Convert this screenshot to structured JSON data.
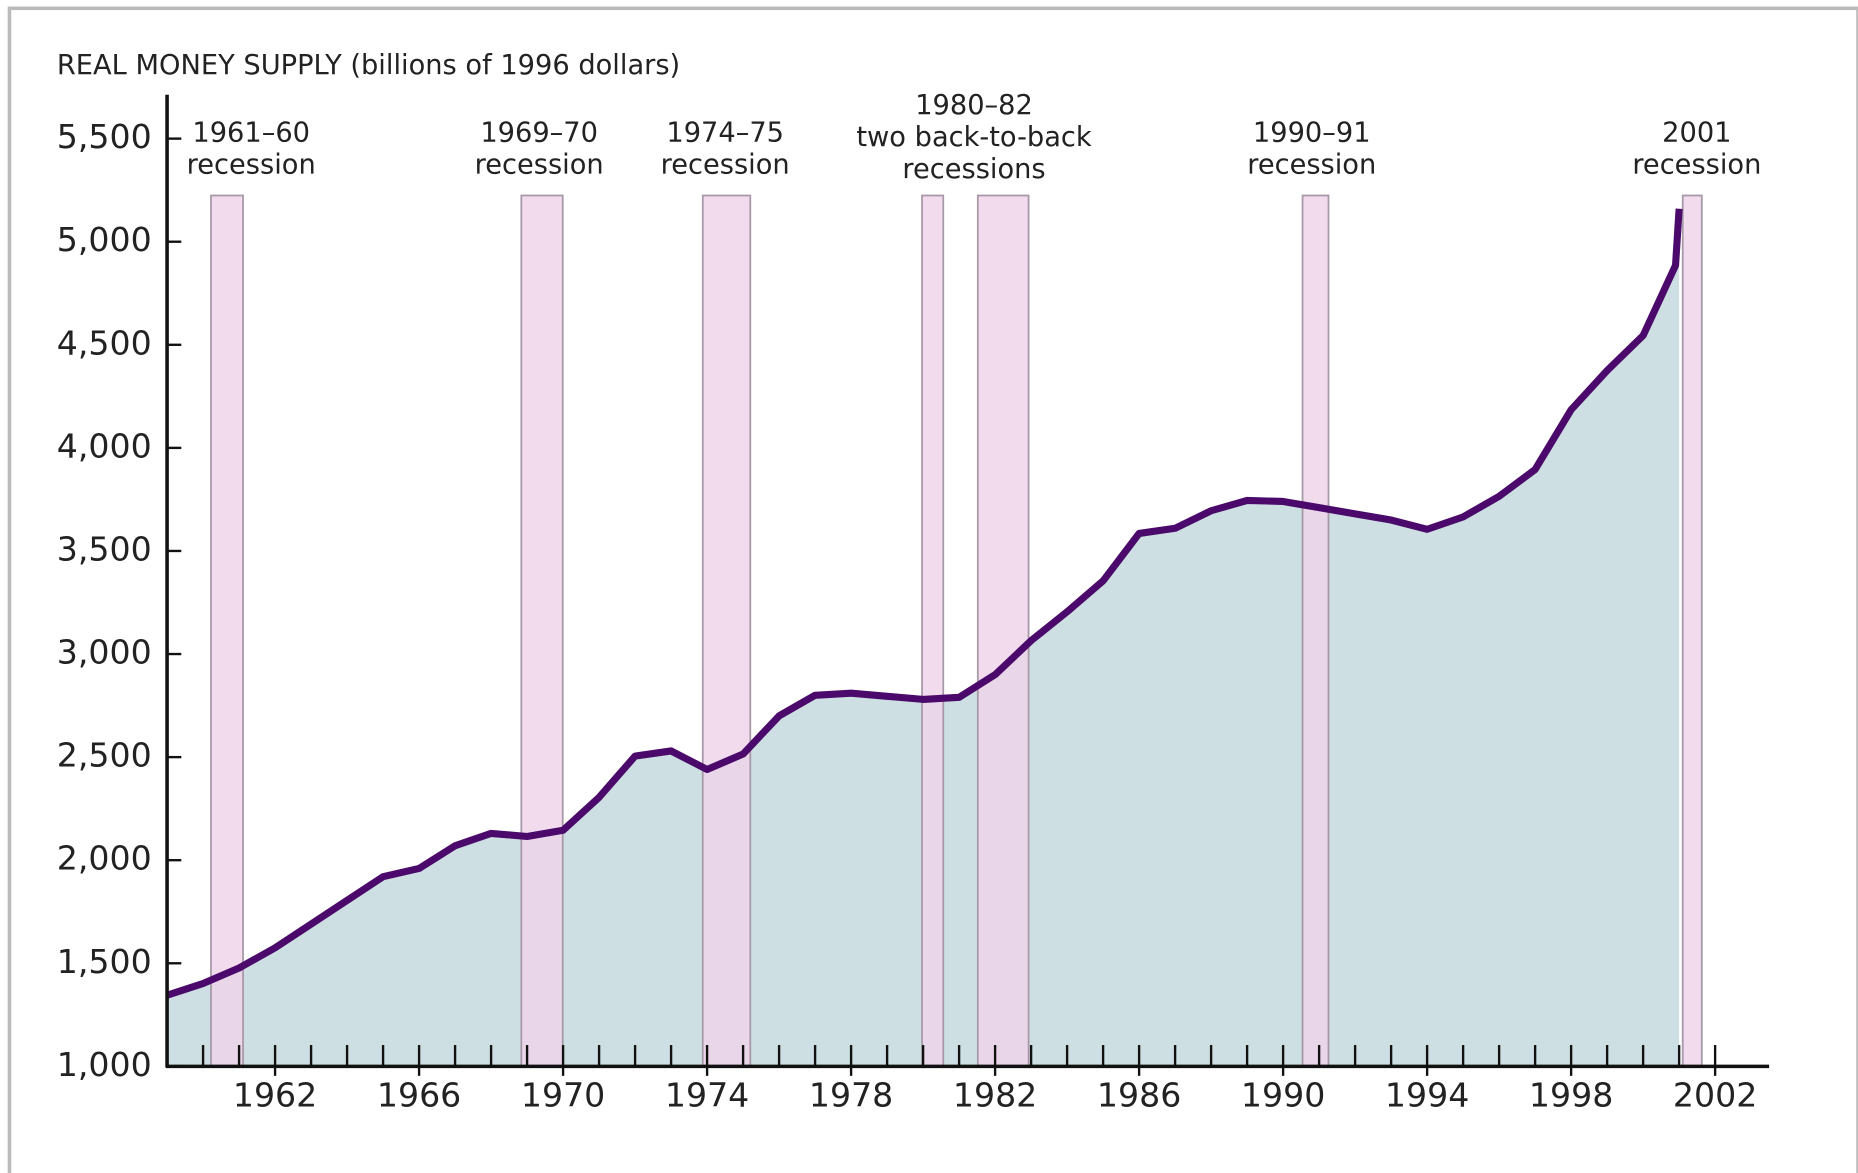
{
  "chart_data": {
    "type": "area",
    "title": "REAL MONEY SUPPLY (billions of 1996 dollars)",
    "x": [
      1959,
      1960,
      1961,
      1962,
      1963,
      1964,
      1965,
      1966,
      1967,
      1968,
      1969,
      1970,
      1971,
      1972,
      1973,
      1974,
      1975,
      1976,
      1977,
      1978,
      1979,
      1980,
      1981,
      1982,
      1983,
      1984,
      1985,
      1986,
      1987,
      1988,
      1989,
      1990,
      1991,
      1992,
      1993,
      1994,
      1995,
      1996,
      1997,
      1998,
      1999,
      2000,
      2000.9,
      2001
    ],
    "series": [
      {
        "color": "#4b0a6b",
        "fill": "#cddfe2",
        "values": [
          1345,
          1402,
          1477,
          1575,
          1690,
          1805,
          1920,
          1960,
          2070,
          2130,
          2115,
          2145,
          2305,
          2505,
          2530,
          2440,
          2515,
          2700,
          2800,
          2810,
          2795,
          2780,
          2790,
          2900,
          3065,
          3205,
          3355,
          3585,
          3610,
          3695,
          3745,
          3740,
          3710,
          3680,
          3650,
          3605,
          3665,
          3765,
          3895,
          4185,
          4375,
          4545,
          4885,
          5160
        ]
      }
    ],
    "recessions": [
      [
        1960.22,
        1961.11
      ],
      [
        1968.84,
        1969.99
      ],
      [
        1973.88,
        1975.2
      ],
      [
        1979.97,
        1980.56
      ],
      [
        1981.52,
        1982.93
      ],
      [
        1990.54,
        1991.26
      ],
      [
        2001.1,
        2001.63
      ]
    ],
    "recession_color": "#efd5ea",
    "annotations": [
      [
        "1961–60",
        "recession"
      ],
      [
        "1969–70",
        "recession"
      ],
      [
        "1974–75",
        "recession"
      ],
      [
        "1980–82",
        "two back-to-back",
        "recessions"
      ],
      [
        "1990–91",
        "recession"
      ],
      [
        "2001",
        "recession"
      ]
    ],
    "xlim": [
      1959,
      2003.5
    ],
    "ylim": [
      1000,
      5500
    ],
    "xticks": [
      1962,
      1966,
      1970,
      1974,
      1978,
      1982,
      1986,
      1990,
      1994,
      1998,
      2002
    ],
    "xminorticks": [
      1960,
      1961,
      1962,
      1963,
      1964,
      1965,
      1966,
      1967,
      1968,
      1969,
      1970,
      1971,
      1972,
      1973,
      1974,
      1975,
      1976,
      1977,
      1978,
      1979,
      1980,
      1981,
      1982,
      1983,
      1984,
      1985,
      1986,
      1987,
      1988,
      1989,
      1990,
      1991,
      1992,
      1993,
      1994,
      1995,
      1996,
      1997,
      1998,
      1999,
      2000,
      2001,
      2002
    ],
    "yticks": [
      {
        "value": 1000,
        "label": "1,000"
      },
      {
        "value": 1500,
        "label": "1,500"
      },
      {
        "value": 2000,
        "label": "2,000"
      },
      {
        "value": 2500,
        "label": "2,500"
      },
      {
        "value": 3000,
        "label": "3,000"
      },
      {
        "value": 3500,
        "label": "3,500"
      },
      {
        "value": 4000,
        "label": "4,000"
      },
      {
        "value": 4500,
        "label": "4,500"
      },
      {
        "value": 5000,
        "label": "5,000"
      },
      {
        "value": 5500,
        "label": "5,500"
      }
    ]
  }
}
